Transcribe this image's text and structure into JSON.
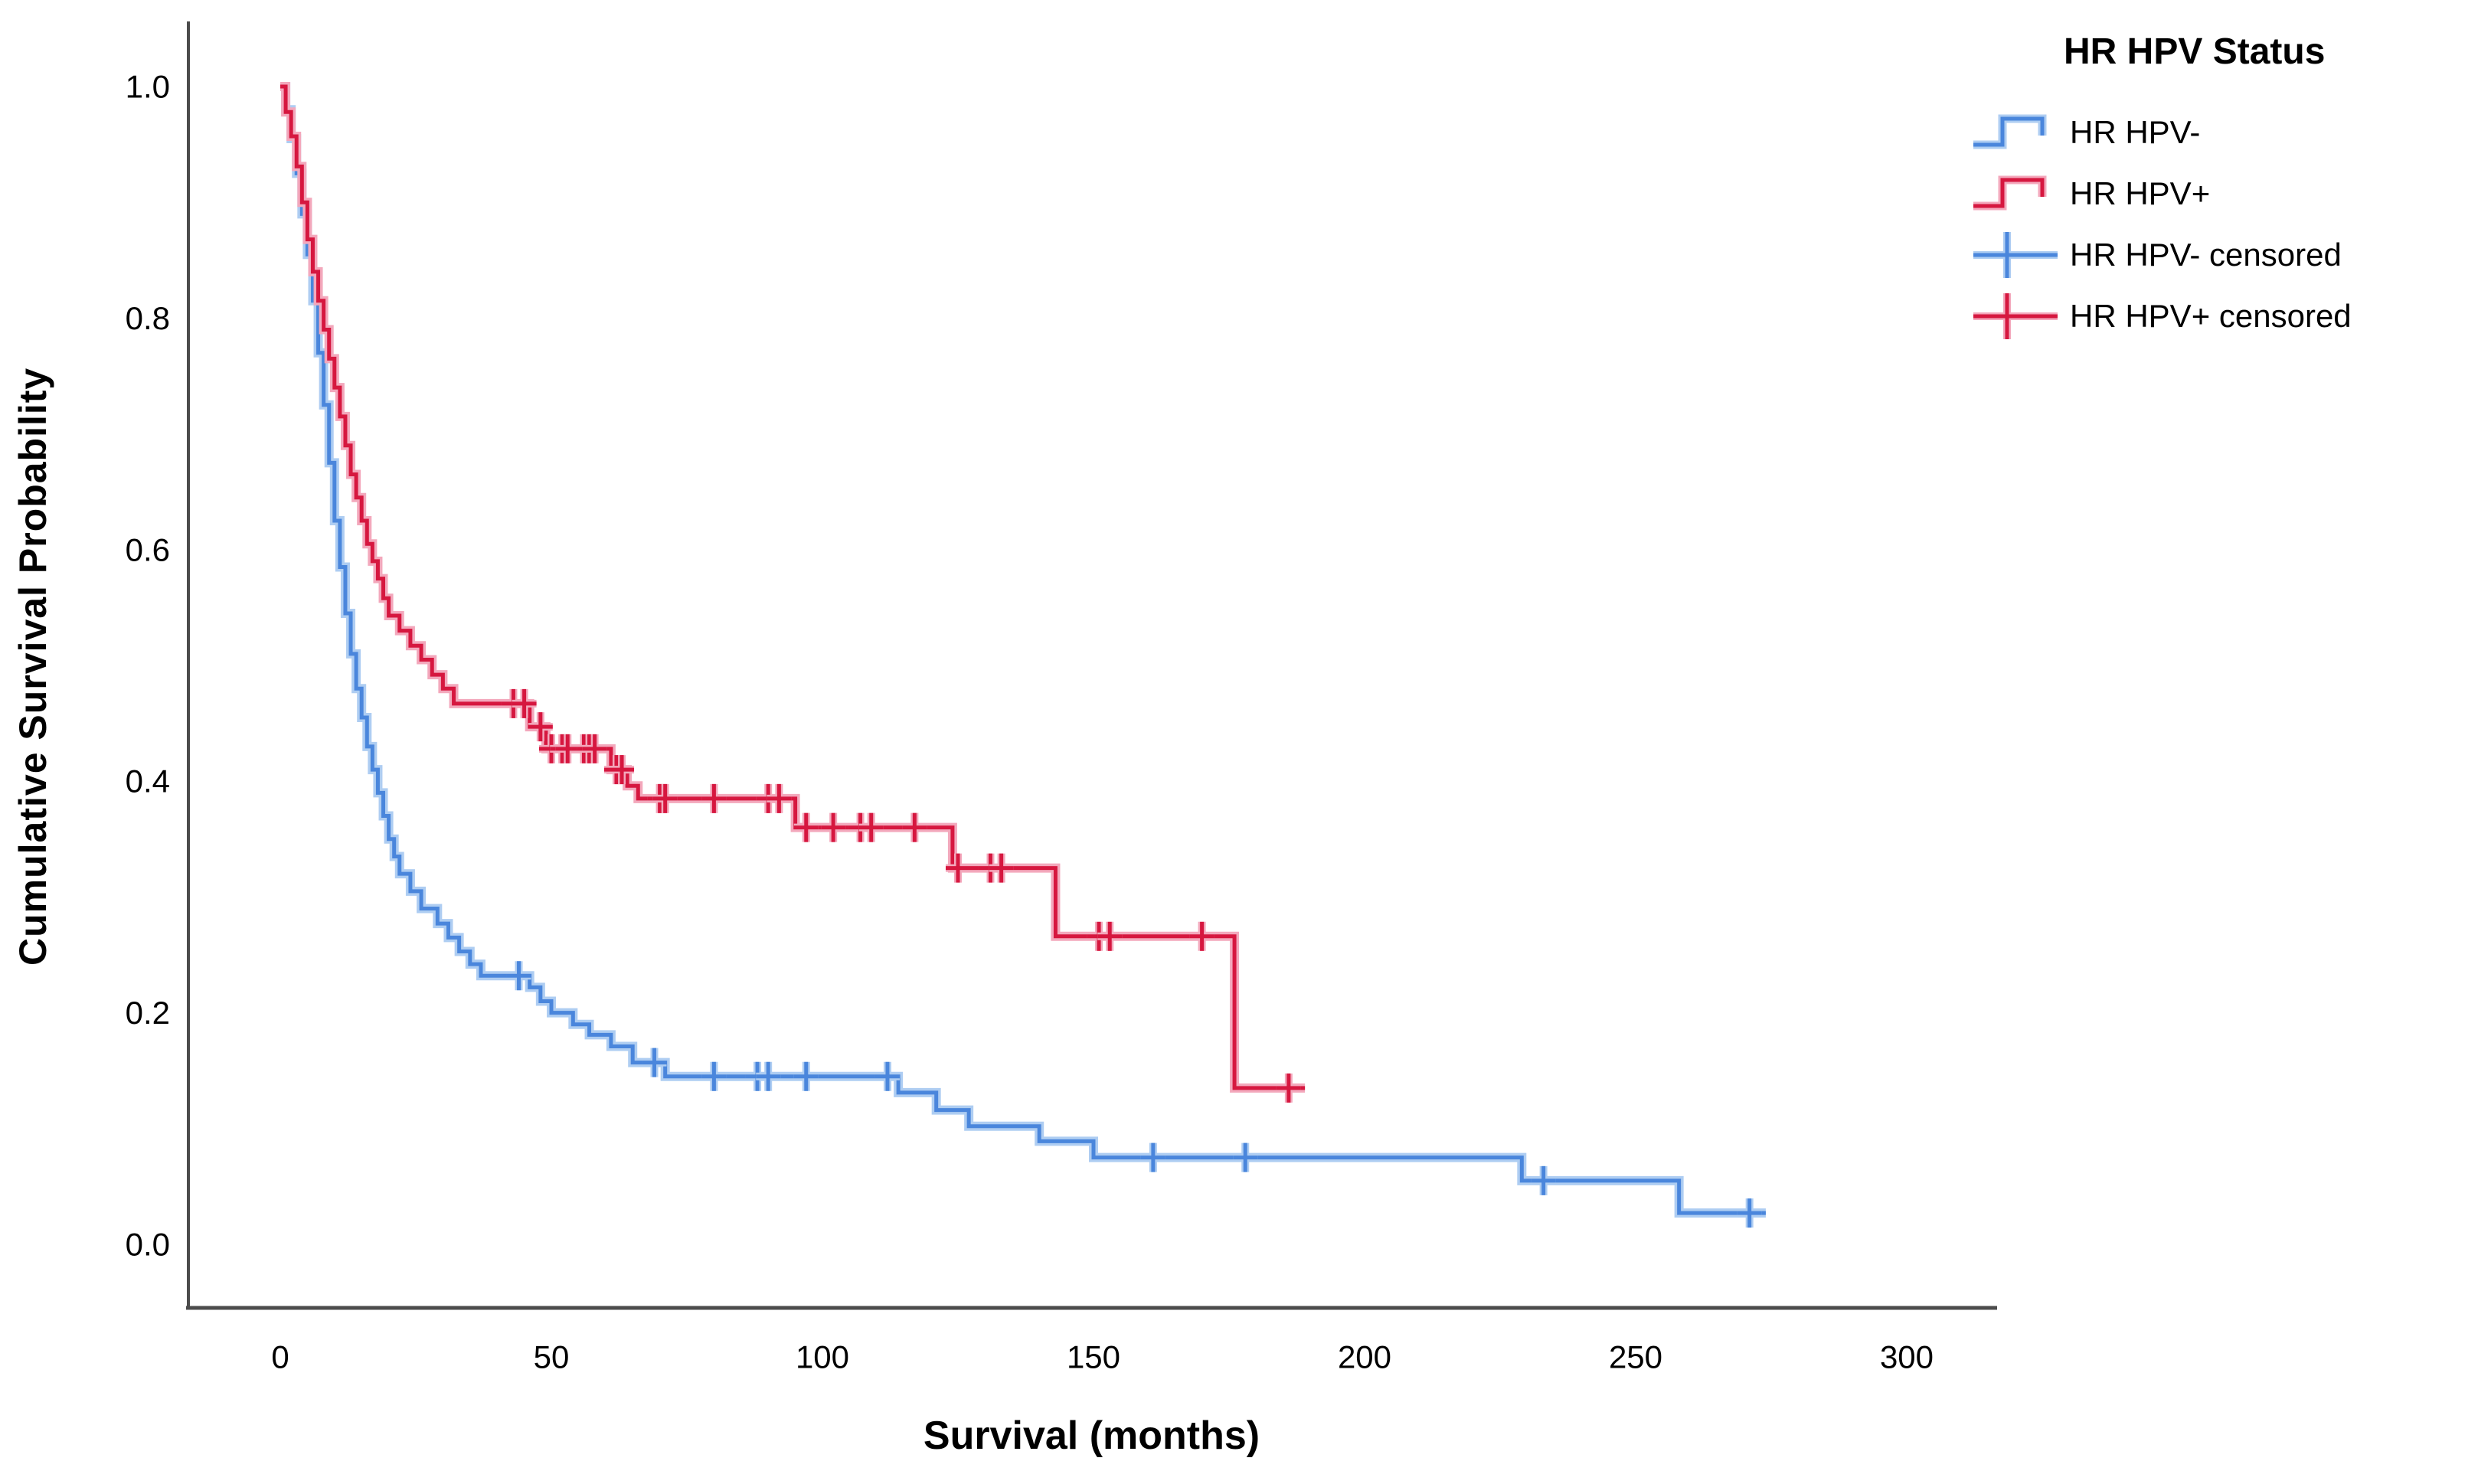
{
  "chart_data": {
    "type": "line",
    "subtype": "kaplan-meier-step",
    "title": "",
    "xlabel": "Survival (months)",
    "ylabel": "Cumulative Survival Probability",
    "xlim": [
      0,
      300
    ],
    "ylim": [
      0.0,
      1.0
    ],
    "x_ticks": [
      0,
      50,
      100,
      150,
      200,
      250,
      300
    ],
    "y_ticks": [
      0.0,
      0.2,
      0.4,
      0.6,
      0.8,
      1.0
    ],
    "y_tick_labels": [
      "0.0",
      "0.2",
      "0.4",
      "0.6",
      "0.8",
      "1.0"
    ],
    "grid": false,
    "axis_color": "#4c4c4c",
    "text_color": "#000000",
    "legend": {
      "title": "HR HPV Status",
      "position": "top-right",
      "entries": [
        {
          "label": "HR HPV-",
          "series": "HR HPV-",
          "marker": "step-line"
        },
        {
          "label": "HR HPV+",
          "series": "HR HPV+",
          "marker": "step-line"
        },
        {
          "label": "HR HPV- censored",
          "series": "HR HPV-",
          "marker": "plus"
        },
        {
          "label": "HR HPV+ censored",
          "series": "HR HPV+",
          "marker": "plus"
        }
      ]
    },
    "series": [
      {
        "name": "HR HPV-",
        "color": "#4a86dc",
        "halo_color": "#aecdf2",
        "end_time": 274,
        "steps": [
          [
            0,
            1.0
          ],
          [
            1,
            0.98
          ],
          [
            2,
            0.955
          ],
          [
            3,
            0.925
          ],
          [
            4,
            0.89
          ],
          [
            5,
            0.855
          ],
          [
            6,
            0.815
          ],
          [
            7,
            0.77
          ],
          [
            8,
            0.725
          ],
          [
            9,
            0.675
          ],
          [
            10,
            0.625
          ],
          [
            11,
            0.585
          ],
          [
            12,
            0.545
          ],
          [
            13,
            0.51
          ],
          [
            14,
            0.48
          ],
          [
            15,
            0.455
          ],
          [
            16,
            0.43
          ],
          [
            17,
            0.41
          ],
          [
            18,
            0.39
          ],
          [
            19,
            0.37
          ],
          [
            20,
            0.35
          ],
          [
            21,
            0.335
          ],
          [
            22,
            0.32
          ],
          [
            24,
            0.305
          ],
          [
            26,
            0.29
          ],
          [
            29,
            0.277
          ],
          [
            31,
            0.265
          ],
          [
            33,
            0.253
          ],
          [
            35,
            0.242
          ],
          [
            37,
            0.232
          ],
          [
            46,
            0.222
          ],
          [
            48,
            0.21
          ],
          [
            50,
            0.2
          ],
          [
            54,
            0.19
          ],
          [
            57,
            0.181
          ],
          [
            61,
            0.171
          ],
          [
            65,
            0.157
          ],
          [
            71,
            0.145
          ],
          [
            114,
            0.131
          ],
          [
            121,
            0.116
          ],
          [
            127,
            0.102
          ],
          [
            140,
            0.089
          ],
          [
            150,
            0.075
          ],
          [
            229,
            0.055
          ],
          [
            258,
            0.027
          ]
        ],
        "censors": [
          [
            44,
            0.232
          ],
          [
            69,
            0.157
          ],
          [
            80,
            0.145
          ],
          [
            88,
            0.145
          ],
          [
            90,
            0.145
          ],
          [
            97,
            0.145
          ],
          [
            112,
            0.145
          ],
          [
            161,
            0.075
          ],
          [
            178,
            0.075
          ],
          [
            233,
            0.055
          ],
          [
            271,
            0.027
          ]
        ]
      },
      {
        "name": "HR HPV+",
        "color": "#d6173f",
        "halo_color": "#f3a8bc",
        "end_time": 189,
        "steps": [
          [
            0,
            1.0
          ],
          [
            1,
            0.978
          ],
          [
            2,
            0.957
          ],
          [
            3,
            0.931
          ],
          [
            4,
            0.9
          ],
          [
            5,
            0.868
          ],
          [
            6,
            0.84
          ],
          [
            7,
            0.815
          ],
          [
            8,
            0.79
          ],
          [
            9,
            0.765
          ],
          [
            10,
            0.74
          ],
          [
            11,
            0.715
          ],
          [
            12,
            0.69
          ],
          [
            13,
            0.665
          ],
          [
            14,
            0.645
          ],
          [
            15,
            0.625
          ],
          [
            16,
            0.605
          ],
          [
            17,
            0.59
          ],
          [
            18,
            0.575
          ],
          [
            19,
            0.558
          ],
          [
            20,
            0.543
          ],
          [
            22,
            0.53
          ],
          [
            24,
            0.517
          ],
          [
            26,
            0.505
          ],
          [
            28,
            0.492
          ],
          [
            30,
            0.48
          ],
          [
            32,
            0.467
          ],
          [
            46,
            0.447
          ],
          [
            49,
            0.428
          ],
          [
            61,
            0.41
          ],
          [
            64,
            0.396
          ],
          [
            66,
            0.385
          ],
          [
            95,
            0.36
          ],
          [
            124,
            0.325
          ],
          [
            143,
            0.266
          ],
          [
            176,
            0.135
          ]
        ],
        "censors": [
          [
            43,
            0.467
          ],
          [
            45,
            0.467
          ],
          [
            48,
            0.447
          ],
          [
            50,
            0.428
          ],
          [
            52,
            0.428
          ],
          [
            53,
            0.428
          ],
          [
            56,
            0.428
          ],
          [
            57,
            0.428
          ],
          [
            58,
            0.428
          ],
          [
            62,
            0.41
          ],
          [
            63,
            0.41
          ],
          [
            70,
            0.385
          ],
          [
            71,
            0.385
          ],
          [
            80,
            0.385
          ],
          [
            90,
            0.385
          ],
          [
            92,
            0.385
          ],
          [
            97,
            0.36
          ],
          [
            102,
            0.36
          ],
          [
            107,
            0.36
          ],
          [
            109,
            0.36
          ],
          [
            117,
            0.36
          ],
          [
            125,
            0.325
          ],
          [
            131,
            0.325
          ],
          [
            133,
            0.325
          ],
          [
            151,
            0.266
          ],
          [
            153,
            0.266
          ],
          [
            170,
            0.266
          ],
          [
            186,
            0.135
          ]
        ]
      }
    ]
  }
}
